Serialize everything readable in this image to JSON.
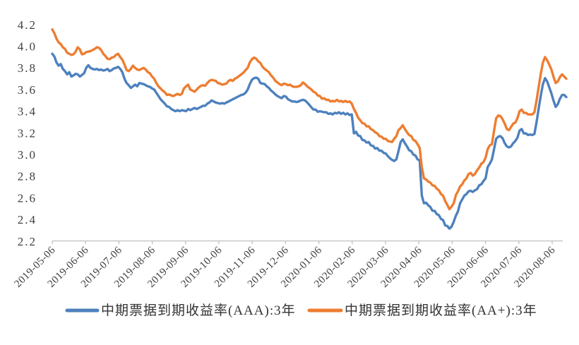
{
  "chart_data": {
    "type": "line",
    "title": "",
    "grid": false,
    "legend_position": "bottom",
    "y_axis": {
      "min": 2.2,
      "max": 4.2,
      "step": 0.2
    },
    "y_tick_labels": [
      "2.2",
      "2.4",
      "2.6",
      "2.8",
      "3.0",
      "3.2",
      "3.4",
      "3.6",
      "3.8",
      "4.0",
      "4.2"
    ],
    "x_tick_labels": [
      "2019-05-06",
      "2019-06-06",
      "2019-07-06",
      "2019-08-06",
      "2019-09-06",
      "2019-10-06",
      "2019-11-06",
      "2019-12-06",
      "2020-01-06",
      "2020-02-06",
      "2020-03-06",
      "2020-04-06",
      "2020-05-06",
      "2020-06-06",
      "2020-07-06",
      "2020-08-06"
    ],
    "x_sampling": "uniform daily samples from 2019-05-06 to mid-August 2020",
    "series": [
      {
        "name": "中期票据到期收益率(AAA):3年",
        "color": "#4E81BD",
        "values": [
          3.93,
          3.905,
          3.85,
          3.82,
          3.835,
          3.79,
          3.77,
          3.74,
          3.76,
          3.72,
          3.73,
          3.745,
          3.74,
          3.72,
          3.735,
          3.75,
          3.8,
          3.825,
          3.8,
          3.79,
          3.785,
          3.79,
          3.78,
          3.785,
          3.775,
          3.78,
          3.79,
          3.77,
          3.78,
          3.795,
          3.8,
          3.81,
          3.79,
          3.76,
          3.7,
          3.66,
          3.64,
          3.615,
          3.63,
          3.645,
          3.63,
          3.66,
          3.655,
          3.65,
          3.64,
          3.63,
          3.625,
          3.61,
          3.6,
          3.57,
          3.54,
          3.51,
          3.49,
          3.47,
          3.445,
          3.44,
          3.42,
          3.41,
          3.4,
          3.41,
          3.4,
          3.41,
          3.405,
          3.4,
          3.42,
          3.41,
          3.42,
          3.43,
          3.42,
          3.43,
          3.44,
          3.45,
          3.45,
          3.47,
          3.48,
          3.5,
          3.49,
          3.48,
          3.475,
          3.47,
          3.475,
          3.47,
          3.48,
          3.49,
          3.5,
          3.51,
          3.52,
          3.53,
          3.54,
          3.55,
          3.555,
          3.57,
          3.6,
          3.65,
          3.69,
          3.705,
          3.71,
          3.7,
          3.66,
          3.655,
          3.65,
          3.63,
          3.615,
          3.59,
          3.575,
          3.555,
          3.54,
          3.53,
          3.52,
          3.54,
          3.535,
          3.51,
          3.5,
          3.49,
          3.49,
          3.485,
          3.49,
          3.5,
          3.505,
          3.5,
          3.48,
          3.46,
          3.435,
          3.415,
          3.415,
          3.395,
          3.4,
          3.395,
          3.39,
          3.39,
          3.375,
          3.38,
          3.37,
          3.385,
          3.38,
          3.39,
          3.375,
          3.385,
          3.37,
          3.38,
          3.365,
          3.37,
          3.195,
          3.21,
          3.175,
          3.17,
          3.135,
          3.13,
          3.11,
          3.115,
          3.085,
          3.08,
          3.055,
          3.06,
          3.035,
          3.035,
          3.015,
          3.01,
          2.985,
          2.965,
          2.95,
          2.94,
          2.955,
          3.03,
          3.115,
          3.14,
          3.105,
          3.075,
          3.04,
          3.03,
          3.0,
          2.99,
          2.955,
          2.945,
          2.62,
          2.55,
          2.555,
          2.53,
          2.515,
          2.48,
          2.48,
          2.45,
          2.44,
          2.405,
          2.395,
          2.345,
          2.34,
          2.315,
          2.335,
          2.38,
          2.435,
          2.475,
          2.55,
          2.585,
          2.62,
          2.635,
          2.66,
          2.665,
          2.655,
          2.67,
          2.68,
          2.715,
          2.725,
          2.755,
          2.78,
          2.885,
          2.915,
          2.955,
          3.05,
          3.145,
          3.165,
          3.17,
          3.15,
          3.105,
          3.075,
          3.065,
          3.075,
          3.105,
          3.125,
          3.155,
          3.22,
          3.235,
          3.195,
          3.195,
          3.18,
          3.185,
          3.18,
          3.19,
          3.3,
          3.425,
          3.545,
          3.65,
          3.705,
          3.675,
          3.62,
          3.565,
          3.495,
          3.44,
          3.465,
          3.515,
          3.55,
          3.55,
          3.53
        ]
      },
      {
        "name": "中期票据到期收益率(AA+):3年",
        "color": "#ED7D31",
        "values": [
          4.155,
          4.12,
          4.07,
          4.035,
          4.02,
          3.99,
          3.975,
          3.94,
          3.93,
          3.92,
          3.925,
          3.95,
          3.99,
          3.97,
          3.925,
          3.93,
          3.945,
          3.95,
          3.955,
          3.965,
          3.975,
          3.99,
          3.985,
          3.965,
          3.93,
          3.91,
          3.885,
          3.88,
          3.895,
          3.9,
          3.92,
          3.93,
          3.9,
          3.875,
          3.83,
          3.78,
          3.77,
          3.79,
          3.82,
          3.8,
          3.785,
          3.78,
          3.79,
          3.8,
          3.785,
          3.76,
          3.75,
          3.72,
          3.7,
          3.66,
          3.63,
          3.61,
          3.59,
          3.575,
          3.55,
          3.555,
          3.545,
          3.54,
          3.55,
          3.56,
          3.55,
          3.56,
          3.61,
          3.63,
          3.645,
          3.6,
          3.59,
          3.58,
          3.6,
          3.62,
          3.635,
          3.64,
          3.635,
          3.66,
          3.68,
          3.69,
          3.685,
          3.68,
          3.66,
          3.655,
          3.645,
          3.65,
          3.655,
          3.68,
          3.69,
          3.68,
          3.7,
          3.71,
          3.725,
          3.74,
          3.755,
          3.78,
          3.8,
          3.85,
          3.88,
          3.895,
          3.885,
          3.86,
          3.845,
          3.81,
          3.79,
          3.775,
          3.76,
          3.73,
          3.71,
          3.68,
          3.665,
          3.65,
          3.64,
          3.655,
          3.65,
          3.64,
          3.645,
          3.63,
          3.625,
          3.625,
          3.63,
          3.64,
          3.665,
          3.65,
          3.63,
          3.615,
          3.6,
          3.58,
          3.57,
          3.545,
          3.54,
          3.515,
          3.52,
          3.505,
          3.505,
          3.49,
          3.495,
          3.49,
          3.505,
          3.49,
          3.495,
          3.485,
          3.495,
          3.485,
          3.49,
          3.47,
          3.42,
          3.385,
          3.34,
          3.315,
          3.29,
          3.285,
          3.26,
          3.26,
          3.235,
          3.225,
          3.205,
          3.195,
          3.17,
          3.165,
          3.145,
          3.145,
          3.125,
          3.12,
          3.115,
          3.145,
          3.17,
          3.225,
          3.245,
          3.27,
          3.235,
          3.205,
          3.18,
          3.17,
          3.135,
          3.125,
          3.095,
          3.06,
          2.88,
          2.78,
          2.77,
          2.75,
          2.74,
          2.715,
          2.71,
          2.685,
          2.67,
          2.635,
          2.62,
          2.57,
          2.535,
          2.495,
          2.52,
          2.55,
          2.625,
          2.66,
          2.705,
          2.725,
          2.76,
          2.78,
          2.82,
          2.83,
          2.805,
          2.82,
          2.855,
          2.88,
          2.915,
          2.93,
          2.97,
          3.05,
          3.085,
          3.095,
          3.22,
          3.335,
          3.36,
          3.355,
          3.325,
          3.285,
          3.235,
          3.225,
          3.255,
          3.285,
          3.295,
          3.335,
          3.4,
          3.415,
          3.385,
          3.385,
          3.37,
          3.37,
          3.37,
          3.39,
          3.5,
          3.625,
          3.745,
          3.85,
          3.9,
          3.87,
          3.83,
          3.785,
          3.715,
          3.66,
          3.675,
          3.715,
          3.74,
          3.72,
          3.7
        ]
      }
    ]
  },
  "axis": {
    "color": "#BFBFBF"
  },
  "legend": {
    "item1": "中期票据到期收益率(AAA):3年",
    "item2": "中期票据到期收益率(AA+):3年"
  }
}
